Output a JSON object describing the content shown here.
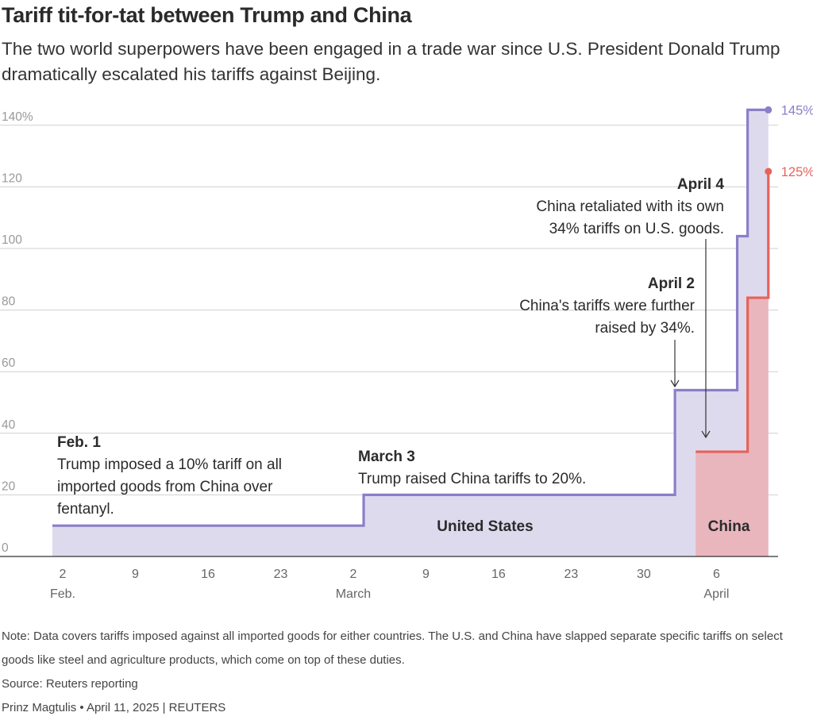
{
  "title": "Tariff tit-for-tat between Trump and China",
  "subtitle": "The two world superpowers have been engaged in a trade war since U.S. President Donald Trump dramatically escalated his tariffs against Beijing.",
  "note": "Note: Data covers tariffs imposed against all imported goods for either countries. The U.S. and China have slapped separate specific tariffs on select goods like steel and agriculture products, which come on top of these duties.",
  "source": "Source: Reuters reporting",
  "byline": "Prinz Magtulis • April 11, 2025 | REUTERS",
  "colors": {
    "us_line": "#8b7fc7",
    "us_fill": "#dedaee",
    "china_line": "#e8625a",
    "china_fill": "#e9b6bd",
    "grid": "#cfcfcf",
    "axis_text": "#777777"
  },
  "chart_data": {
    "type": "area",
    "step": true,
    "x_unit": "day of 2025",
    "ylim": [
      0,
      145
    ],
    "y_ticks": [
      0,
      20,
      40,
      60,
      80,
      100,
      120,
      140
    ],
    "y_tick_labels": [
      "0",
      "20",
      "40",
      "60",
      "80",
      "100",
      "120",
      "140%"
    ],
    "x_ticks": [
      {
        "date": "2025-02-02",
        "day": "2",
        "month": "Feb."
      },
      {
        "date": "2025-02-09",
        "day": "9",
        "month": ""
      },
      {
        "date": "2025-02-16",
        "day": "16",
        "month": ""
      },
      {
        "date": "2025-02-23",
        "day": "23",
        "month": ""
      },
      {
        "date": "2025-03-02",
        "day": "2",
        "month": "March"
      },
      {
        "date": "2025-03-09",
        "day": "9",
        "month": ""
      },
      {
        "date": "2025-03-16",
        "day": "16",
        "month": ""
      },
      {
        "date": "2025-03-23",
        "day": "23",
        "month": ""
      },
      {
        "date": "2025-03-30",
        "day": "30",
        "month": ""
      },
      {
        "date": "2025-04-06",
        "day": "6",
        "month": "April"
      }
    ],
    "series": [
      {
        "name": "United States",
        "end_label": "145%",
        "points": [
          {
            "date": "2025-02-01",
            "value": 10
          },
          {
            "date": "2025-03-03",
            "value": 20
          },
          {
            "date": "2025-04-02",
            "value": 54
          },
          {
            "date": "2025-04-08",
            "value": 104
          },
          {
            "date": "2025-04-09",
            "value": 145
          },
          {
            "date": "2025-04-11",
            "value": 145
          }
        ]
      },
      {
        "name": "China",
        "end_label": "125%",
        "points": [
          {
            "date": "2025-04-04",
            "value": 34
          },
          {
            "date": "2025-04-09",
            "value": 84
          },
          {
            "date": "2025-04-11",
            "value": 125
          }
        ]
      }
    ],
    "annotations": [
      {
        "id": "feb1",
        "date": "2025-02-01",
        "heading": "Feb. 1",
        "lines": [
          "Trump imposed a 10% tariff on all",
          "imported goods from China over",
          "fentanyl."
        ]
      },
      {
        "id": "mar3",
        "date": "2025-03-03",
        "heading": "March 3",
        "lines": [
          "Trump raised China tariffs to 20%."
        ]
      },
      {
        "id": "apr2",
        "date": "2025-04-02",
        "heading": "April 2",
        "lines": [
          "China's tariffs were further",
          "raised by 34%."
        ]
      },
      {
        "id": "apr4",
        "date": "2025-04-04",
        "heading": "April 4",
        "lines": [
          "China retaliated with its own",
          "34% tariffs on U.S. goods."
        ]
      }
    ]
  }
}
